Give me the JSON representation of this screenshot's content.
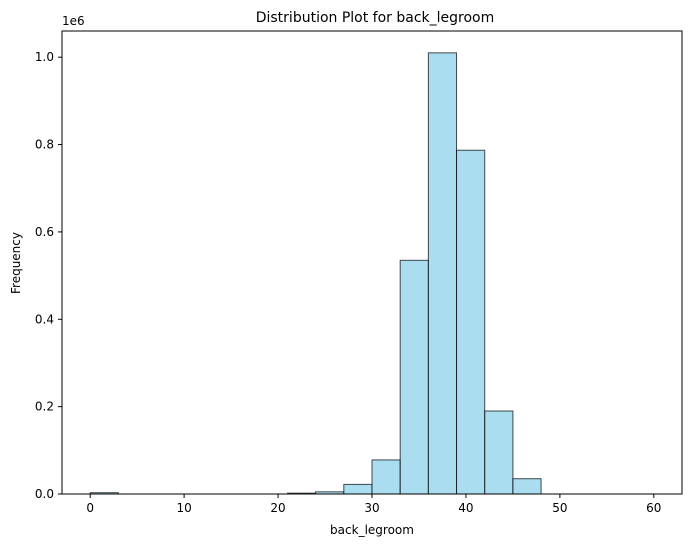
{
  "chart_data": {
    "type": "bar",
    "title": "Distribution Plot for back_legroom",
    "xlabel": "back_legroom",
    "ylabel": "Frequency",
    "y_offset_label": "1e6",
    "xlim": [
      -3,
      63
    ],
    "ylim": [
      0,
      1060000
    ],
    "x_ticks": [
      0,
      10,
      20,
      30,
      40,
      50,
      60
    ],
    "y_ticks": [
      0.0,
      0.2,
      0.4,
      0.6,
      0.8,
      1.0
    ],
    "y_tick_labels": [
      "0.0",
      "0.2",
      "0.4",
      "0.6",
      "0.8",
      "1.0"
    ],
    "bin_edges": [
      0,
      3,
      6,
      9,
      12,
      15,
      18,
      21,
      24,
      27,
      30,
      33,
      36,
      39,
      42,
      45,
      48,
      51,
      54,
      57,
      60
    ],
    "values": [
      3000,
      0,
      0,
      0,
      0,
      0,
      0,
      2000,
      5000,
      22000,
      78000,
      535000,
      1010000,
      787000,
      190000,
      35000,
      0,
      0,
      0,
      0
    ],
    "bar_color": "#87ceeb",
    "bar_edge_color": "#000000",
    "grid": false
  }
}
